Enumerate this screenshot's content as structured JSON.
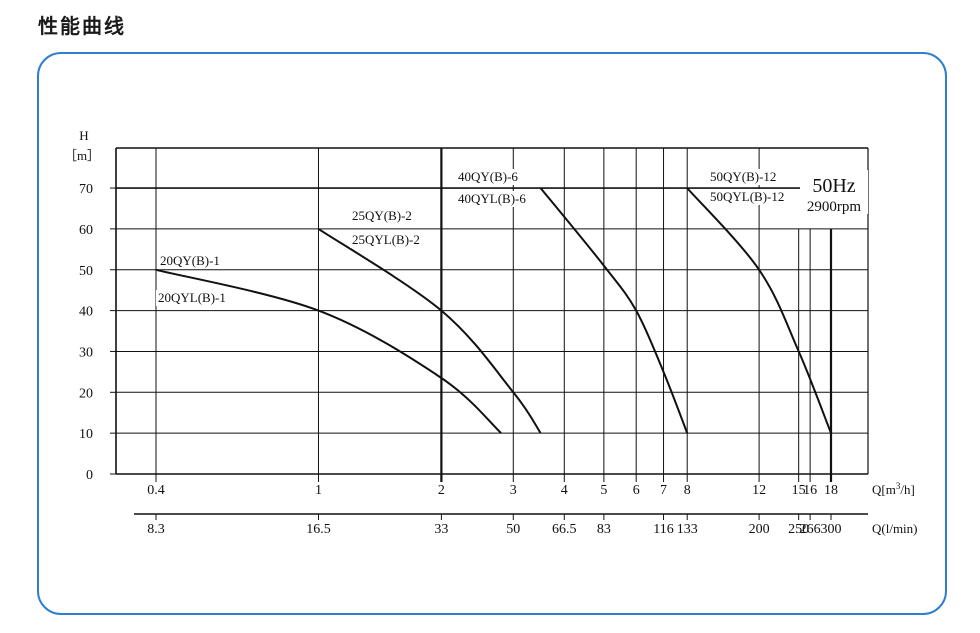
{
  "page": {
    "title": "性能曲线"
  },
  "chart_data": {
    "type": "line",
    "title": "",
    "y_axis": {
      "label_top": "H",
      "label_unit": "［m］",
      "ticks": [
        0,
        10,
        20,
        30,
        40,
        50,
        60,
        70
      ],
      "ylim": [
        0,
        80
      ],
      "grid": true
    },
    "x_axis_primary": {
      "unit_label": "Q[m³/h]",
      "ticks": [
        {
          "q": 0.4,
          "label": "0.4"
        },
        {
          "q": 1,
          "label": "1"
        },
        {
          "q": 2,
          "label": "2"
        },
        {
          "q": 3,
          "label": "3"
        },
        {
          "q": 4,
          "label": "4"
        },
        {
          "q": 5,
          "label": "5"
        },
        {
          "q": 6,
          "label": "6"
        },
        {
          "q": 7,
          "label": "7"
        },
        {
          "q": 8,
          "label": "8"
        },
        {
          "q": 12,
          "label": "12"
        },
        {
          "q": 15,
          "label": "15"
        },
        {
          "q": 16,
          "label": "16"
        },
        {
          "q": 18,
          "label": "18"
        }
      ],
      "scale": "log",
      "grid": true
    },
    "x_axis_secondary": {
      "unit_label": "Q(l/min)",
      "ticks": [
        {
          "q": 0.4,
          "label": "8.3"
        },
        {
          "q": 1,
          "label": "16.5"
        },
        {
          "q": 2,
          "label": "33"
        },
        {
          "q": 3,
          "label": "50"
        },
        {
          "q": 4,
          "label": "66.5"
        },
        {
          "q": 5,
          "label": "83"
        },
        {
          "q": 7,
          "label": "116"
        },
        {
          "q": 8,
          "label": "133"
        },
        {
          "q": 12,
          "label": "200"
        },
        {
          "q": 15,
          "label": "250"
        },
        {
          "q": 16,
          "label": "266"
        },
        {
          "q": 18,
          "label": "300"
        }
      ]
    },
    "annotation": {
      "line1": "50Hz",
      "line2": "2900rpm"
    },
    "series": [
      {
        "name": "20QY(B)-1",
        "points": [
          [
            0.4,
            50
          ],
          [
            1,
            40
          ],
          [
            2,
            23.5
          ],
          [
            2.8,
            10
          ]
        ]
      },
      {
        "name": "20QYL(B)-1",
        "points": [
          [
            0.4,
            50
          ],
          [
            1,
            40
          ],
          [
            2,
            23.5
          ],
          [
            2.8,
            10
          ]
        ]
      },
      {
        "name": "25QY(B)-2",
        "points": [
          [
            1,
            60
          ],
          [
            2,
            40
          ],
          [
            3,
            20
          ],
          [
            3.5,
            10
          ]
        ]
      },
      {
        "name": "25QYL(B)-2",
        "points": [
          [
            1,
            60
          ],
          [
            2,
            40
          ],
          [
            3,
            20
          ],
          [
            3.5,
            10
          ]
        ]
      },
      {
        "name": "40QY(B)-6",
        "points": [
          [
            3.5,
            70
          ],
          [
            5,
            51
          ],
          [
            6,
            40
          ],
          [
            7,
            25
          ],
          [
            8,
            10
          ]
        ]
      },
      {
        "name": "40QYL(B)-6",
        "points": [
          [
            3.5,
            70
          ],
          [
            5,
            51
          ],
          [
            6,
            40
          ],
          [
            7,
            25
          ],
          [
            8,
            10
          ]
        ]
      },
      {
        "name": "50QY(B)-12",
        "points": [
          [
            8,
            70
          ],
          [
            12,
            50
          ],
          [
            15,
            30
          ],
          [
            18,
            10
          ]
        ]
      },
      {
        "name": "50QYL(B)-12",
        "points": [
          [
            8,
            70
          ],
          [
            12,
            50
          ],
          [
            15,
            30
          ],
          [
            18,
            10
          ]
        ]
      }
    ]
  }
}
